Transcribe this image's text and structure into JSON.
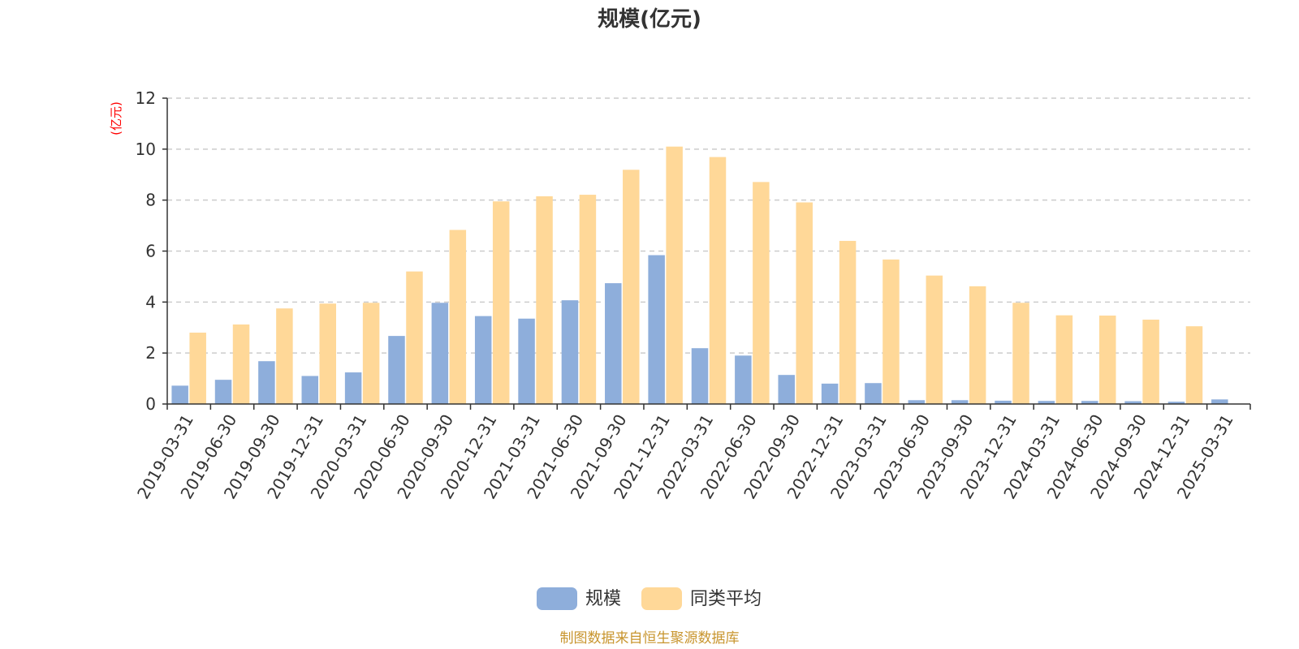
{
  "chart_data": {
    "type": "bar",
    "title": "规模(亿元)",
    "ylabel": "(亿元)",
    "ylim": [
      0,
      12
    ],
    "yticks": [
      0,
      2,
      4,
      6,
      8,
      10,
      12
    ],
    "grid": true,
    "legend_position": "bottom-center",
    "categories": [
      "2019-03-31",
      "2019-06-30",
      "2019-09-30",
      "2019-12-31",
      "2020-03-31",
      "2020-06-30",
      "2020-09-30",
      "2020-12-31",
      "2021-03-31",
      "2021-06-30",
      "2021-09-30",
      "2021-12-31",
      "2022-03-31",
      "2022-06-30",
      "2022-09-30",
      "2022-12-31",
      "2023-03-31",
      "2023-06-30",
      "2023-09-30",
      "2023-12-31",
      "2024-03-31",
      "2024-06-30",
      "2024-09-30",
      "2024-12-31",
      "2025-03-31"
    ],
    "series": [
      {
        "name": "规模",
        "color": "#8eaedb",
        "values": [
          0.72,
          0.95,
          1.68,
          1.1,
          1.24,
          2.67,
          3.97,
          3.45,
          3.35,
          4.07,
          4.74,
          5.84,
          2.19,
          1.9,
          1.14,
          0.8,
          0.82,
          0.15,
          0.15,
          0.13,
          0.12,
          0.12,
          0.11,
          0.09,
          0.18
        ]
      },
      {
        "name": "同类平均",
        "color": "#ffd898",
        "values": [
          2.8,
          3.12,
          3.75,
          3.94,
          3.97,
          5.2,
          6.83,
          7.95,
          8.15,
          8.21,
          9.19,
          10.1,
          9.69,
          8.71,
          7.91,
          6.4,
          5.67,
          5.04,
          4.62,
          3.97,
          3.48,
          3.47,
          3.31,
          3.05,
          null
        ]
      }
    ]
  },
  "footer": {
    "source_text": "制图数据来自恒生聚源数据库",
    "source_color": "#c8952e"
  },
  "colors": {
    "axis": "#333333",
    "grid": "#cccccc",
    "unit_label": "#ff0000"
  }
}
